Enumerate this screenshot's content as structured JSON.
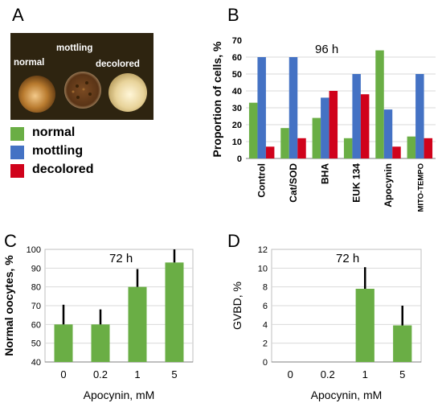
{
  "panels": {
    "a": "A",
    "b": "B",
    "c": "C",
    "d": "D"
  },
  "photo": {
    "labels": [
      "normal",
      "mottling",
      "decolored"
    ]
  },
  "legend": [
    {
      "label": "normal",
      "color": "#6aae45"
    },
    {
      "label": "mottling",
      "color": "#4472c4"
    },
    {
      "label": "decolored",
      "color": "#d0021b"
    }
  ],
  "chart_data": [
    {
      "type": "bar",
      "panel": "B",
      "annotation": "96 h",
      "ylabel": "Proportion of cells, %",
      "xlabel": "",
      "ylim": [
        0,
        70
      ],
      "yticks": [
        0,
        10,
        20,
        30,
        40,
        50,
        60,
        70
      ],
      "categories": [
        "Control",
        "Cat/SOD",
        "BHA",
        "EUK 134",
        "Apocynin",
        "MITO-TEMPO"
      ],
      "series": [
        {
          "name": "normal",
          "color": "#6aae45",
          "values": [
            33,
            18,
            24,
            12,
            64,
            13
          ]
        },
        {
          "name": "mottling",
          "color": "#4472c4",
          "values": [
            60,
            60,
            36,
            50,
            29,
            50
          ]
        },
        {
          "name": "decolored",
          "color": "#d0021b",
          "values": [
            7,
            12,
            40,
            38,
            7,
            12
          ]
        }
      ]
    },
    {
      "type": "bar",
      "panel": "C",
      "annotation": "72 h",
      "ylabel": "Normal oocytes, %",
      "xlabel": "Apocynin, mM",
      "ylim": [
        40,
        100
      ],
      "yticks": [
        40,
        50,
        60,
        70,
        80,
        90,
        100
      ],
      "categories": [
        "0",
        "0.2",
        "1",
        "5"
      ],
      "values": [
        60,
        60,
        80,
        93
      ],
      "errors": [
        10.5,
        8,
        9.5,
        7
      ],
      "color": "#6aae45"
    },
    {
      "type": "bar",
      "panel": "D",
      "annotation": "72 h",
      "ylabel": "GVBD, %",
      "xlabel": "Apocynin, mM",
      "ylim": [
        0,
        12
      ],
      "yticks": [
        0,
        2,
        4,
        6,
        8,
        10,
        12
      ],
      "categories": [
        "0",
        "0.2",
        "1",
        "5"
      ],
      "values": [
        0,
        0,
        7.8,
        3.9
      ],
      "errors": [
        0,
        0,
        2.3,
        2.1
      ],
      "color": "#6aae45"
    }
  ]
}
